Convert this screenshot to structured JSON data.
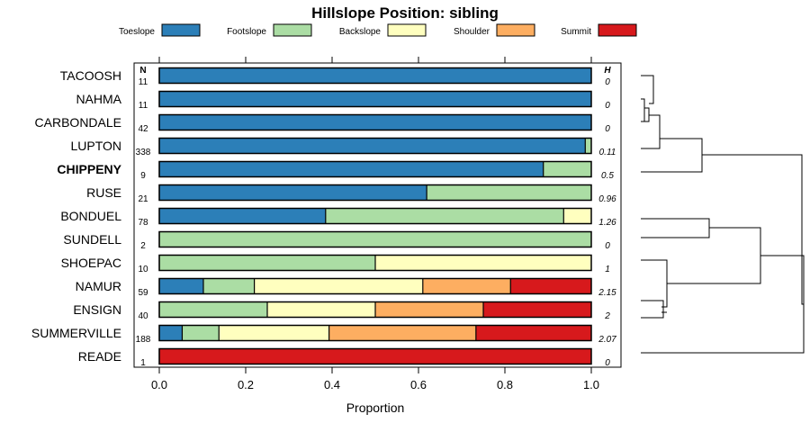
{
  "chart_data": {
    "type": "bar",
    "stacked": true,
    "orientation": "horizontal",
    "title": "Hillslope Position: sibling",
    "xlabel": "Proportion",
    "ylabel": "",
    "xlim": [
      0,
      1
    ],
    "x_ticks": [
      "0.0",
      "0.2",
      "0.4",
      "0.6",
      "0.8",
      "1.0"
    ],
    "legend_position": "top",
    "n_header": "N",
    "h_header": "H",
    "series": [
      {
        "name": "Toeslope",
        "color": "#2c7fb8"
      },
      {
        "name": "Footslope",
        "color": "#abdda4"
      },
      {
        "name": "Backslope",
        "color": "#ffffbf"
      },
      {
        "name": "Shoulder",
        "color": "#fdae61"
      },
      {
        "name": "Summit",
        "color": "#d7191c"
      }
    ],
    "rows": [
      {
        "label": "TACOOSH",
        "n": "11",
        "h": "0",
        "bold": false,
        "values": [
          1.0,
          0,
          0,
          0,
          0
        ]
      },
      {
        "label": "NAHMA",
        "n": "11",
        "h": "0",
        "bold": false,
        "values": [
          1.0,
          0,
          0,
          0,
          0
        ]
      },
      {
        "label": "CARBONDALE",
        "n": "42",
        "h": "0",
        "bold": false,
        "values": [
          1.0,
          0,
          0,
          0,
          0
        ]
      },
      {
        "label": "LUPTON",
        "n": "338",
        "h": "0.11",
        "bold": false,
        "values": [
          0.986,
          0.014,
          0,
          0,
          0
        ]
      },
      {
        "label": "CHIPPENY",
        "n": "9",
        "h": "0.5",
        "bold": true,
        "values": [
          0.889,
          0.111,
          0,
          0,
          0
        ]
      },
      {
        "label": "RUSE",
        "n": "21",
        "h": "0.96",
        "bold": false,
        "values": [
          0.619,
          0.381,
          0,
          0,
          0
        ]
      },
      {
        "label": "BONDUEL",
        "n": "78",
        "h": "1.26",
        "bold": false,
        "values": [
          0.385,
          0.551,
          0.064,
          0,
          0
        ]
      },
      {
        "label": "SUNDELL",
        "n": "2",
        "h": "0",
        "bold": false,
        "values": [
          0,
          1.0,
          0,
          0,
          0
        ]
      },
      {
        "label": "SHOEPAC",
        "n": "10",
        "h": "1",
        "bold": false,
        "values": [
          0,
          0.5,
          0.5,
          0,
          0
        ]
      },
      {
        "label": "NAMUR",
        "n": "59",
        "h": "2.15",
        "bold": false,
        "values": [
          0.102,
          0.118,
          0.39,
          0.203,
          0.187
        ]
      },
      {
        "label": "ENSIGN",
        "n": "40",
        "h": "2",
        "bold": false,
        "values": [
          0,
          0.25,
          0.25,
          0.25,
          0.25
        ]
      },
      {
        "label": "SUMMERVILLE",
        "n": "188",
        "h": "2.07",
        "bold": false,
        "values": [
          0.053,
          0.085,
          0.255,
          0.34,
          0.267
        ]
      },
      {
        "label": "READE",
        "n": "1",
        "h": "0",
        "bold": false,
        "values": [
          0,
          0,
          0,
          0,
          1.0
        ]
      }
    ]
  }
}
